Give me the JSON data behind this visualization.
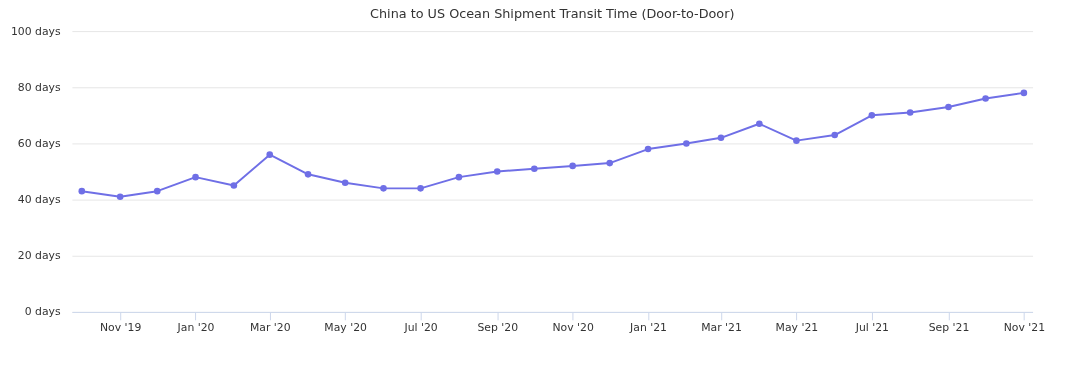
{
  "chart_data": {
    "type": "line",
    "title": "China to US Ocean Shipment Transit Time (Door-to-Door)",
    "x": [
      "2019-10",
      "2019-11",
      "2019-12",
      "2020-01",
      "2020-02",
      "2020-03",
      "2020-04",
      "2020-05",
      "2020-06",
      "2020-07",
      "2020-08",
      "2020-09",
      "2020-10",
      "2020-11",
      "2020-12",
      "2021-01",
      "2021-02",
      "2021-03",
      "2021-04",
      "2021-05",
      "2021-06",
      "2021-07",
      "2021-08",
      "2021-09",
      "2021-10",
      "2021-11"
    ],
    "series": [
      {
        "color": "#6f6fe6",
        "values": [
          43,
          41,
          43,
          48,
          45,
          56,
          49,
          46,
          44,
          44,
          48,
          50,
          51,
          52,
          53,
          58,
          60,
          62,
          67,
          61,
          63,
          70,
          71,
          73,
          76,
          78
        ]
      }
    ],
    "xlim": [
      "2019-09-23",
      "2021-11-08"
    ],
    "xticks": [
      {
        "value": "2019-11",
        "label": "Nov '19"
      },
      {
        "value": "2020-01",
        "label": "Jan '20"
      },
      {
        "value": "2020-03",
        "label": "Mar '20"
      },
      {
        "value": "2020-05",
        "label": "May '20"
      },
      {
        "value": "2020-07",
        "label": "Jul '20"
      },
      {
        "value": "2020-09",
        "label": "Sep '20"
      },
      {
        "value": "2020-11",
        "label": "Nov '20"
      },
      {
        "value": "2021-01",
        "label": "Jan '21"
      },
      {
        "value": "2021-03",
        "label": "Mar '21"
      },
      {
        "value": "2021-05",
        "label": "May '21"
      },
      {
        "value": "2021-07",
        "label": "Jul '21"
      },
      {
        "value": "2021-09",
        "label": "Sep '21"
      },
      {
        "value": "2021-11",
        "label": "Nov '21"
      }
    ],
    "ylim": [
      0,
      100
    ],
    "yticks": [
      {
        "value": 0,
        "label": "0 days"
      },
      {
        "value": 20,
        "label": "20 days"
      },
      {
        "value": 40,
        "label": "40 days"
      },
      {
        "value": 60,
        "label": "60 days"
      },
      {
        "value": 80,
        "label": "80 days"
      },
      {
        "value": 100,
        "label": "100 days"
      }
    ],
    "grid": "y",
    "marker": "circle",
    "line_style": "solid"
  }
}
